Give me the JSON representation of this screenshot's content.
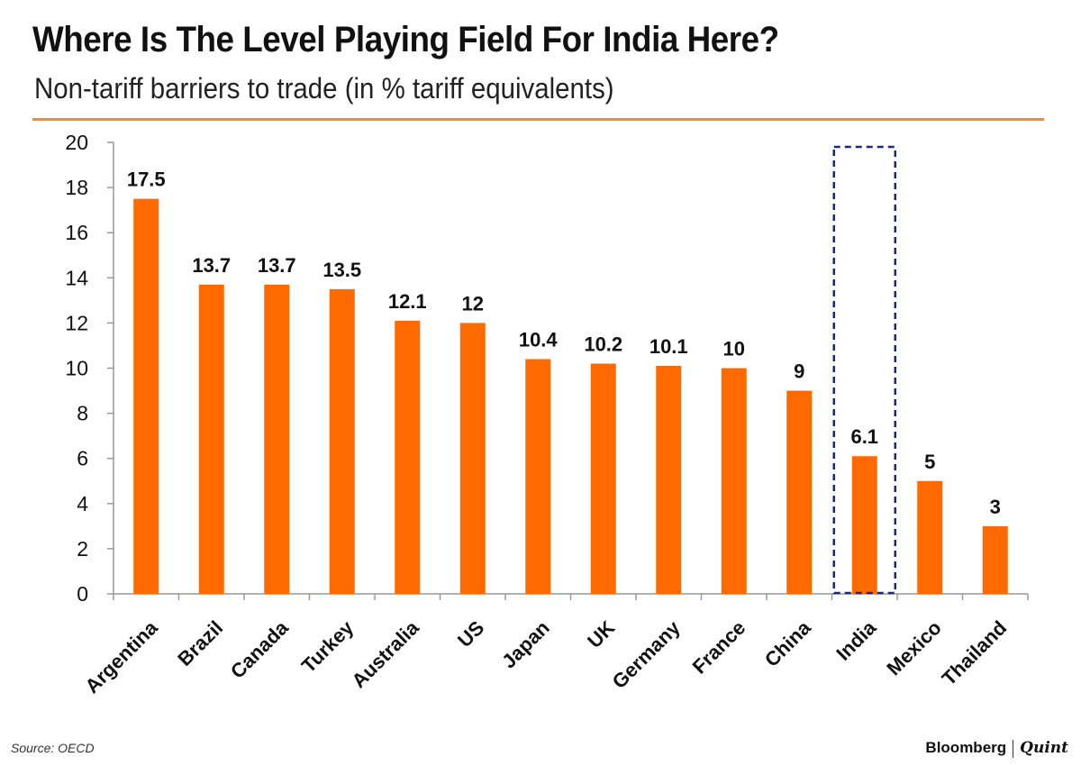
{
  "header": {
    "title": "Where Is The Level Playing Field For India Here?",
    "subtitle": "Non-tariff barriers to trade (in % tariff equivalents)"
  },
  "footer": {
    "source": "Source: OECD",
    "brand_primary": "Bloomberg",
    "brand_secondary": "Quint"
  },
  "colors": {
    "bar": "#FF6A00",
    "accent_rule": "#F0902A",
    "highlight_box": "#1B2A7A",
    "axis": "#999999"
  },
  "chart_data": {
    "type": "bar",
    "title": "Where Is The Level Playing Field For India Here?",
    "subtitle": "Non-tariff barriers to trade (in % tariff equivalents)",
    "xlabel": "",
    "ylabel": "",
    "ylim": [
      0,
      20
    ],
    "yticks": [
      0,
      2,
      4,
      6,
      8,
      10,
      12,
      14,
      16,
      18,
      20
    ],
    "grid": false,
    "categories": [
      "Argentina",
      "Brazil",
      "Canada",
      "Turkey",
      "Australia",
      "US",
      "Japan",
      "UK",
      "Germany",
      "France",
      "China",
      "India",
      "Mexico",
      "Thailand"
    ],
    "values": [
      17.5,
      13.7,
      13.7,
      13.5,
      12.1,
      12,
      10.4,
      10.2,
      10.1,
      10,
      9,
      6.1,
      5,
      3
    ],
    "data_labels": [
      "17.5",
      "13.7",
      "13.7",
      "13.5",
      "12.1",
      "12",
      "10.4",
      "10.2",
      "10.1",
      "10",
      "9",
      "6.1",
      "5",
      "3"
    ],
    "highlight": "India"
  }
}
